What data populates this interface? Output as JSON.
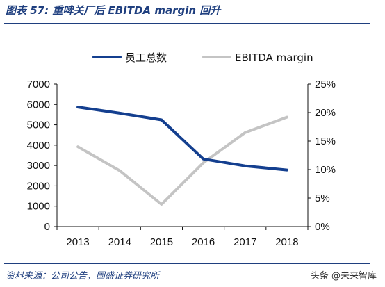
{
  "figure_title": "图表 57: 重啤关厂后 EBITDA margin 回升",
  "source": "资料来源：公司公告，国盛证券研究所",
  "watermark": "头条 @未来智库",
  "chart_data": {
    "type": "line",
    "x": [
      "2013",
      "2014",
      "2015",
      "2016",
      "2017",
      "2018"
    ],
    "series": [
      {
        "name": "员工总数",
        "axis": "left",
        "color": "#143f8f",
        "values": [
          5870,
          5570,
          5240,
          3320,
          2980,
          2780
        ]
      },
      {
        "name": "EBITDA margin",
        "axis": "right",
        "color": "#c4c4c4",
        "values": [
          0.14,
          0.098,
          0.039,
          0.112,
          0.165,
          0.192
        ]
      }
    ],
    "y_left": {
      "lim": [
        0,
        7000
      ],
      "ticks": [
        "0",
        "1000",
        "2000",
        "3000",
        "4000",
        "5000",
        "6000",
        "7000"
      ]
    },
    "y_right": {
      "lim": [
        0,
        0.25
      ],
      "ticks": [
        "0%",
        "5%",
        "10%",
        "15%",
        "20%",
        "25%"
      ]
    },
    "legend_position": "top-center",
    "grid": false
  }
}
